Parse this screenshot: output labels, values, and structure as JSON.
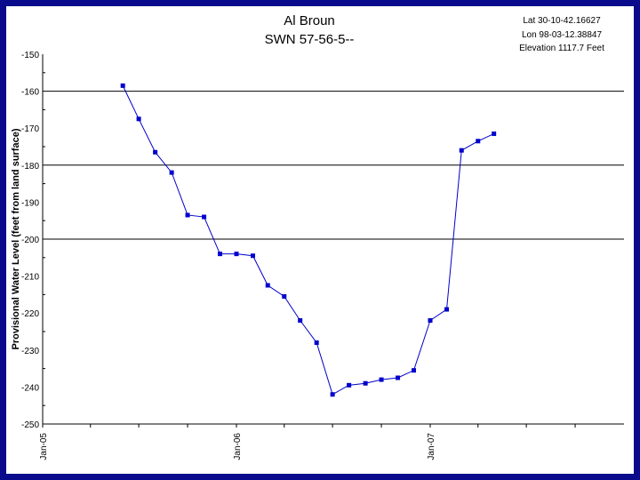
{
  "chart_data": {
    "type": "line",
    "title": "Al Broun",
    "subtitle": "SWN 57-56-5--",
    "annotations": [
      "Lat 30-10-42.16627",
      "Lon 98-03-12.38847",
      "Elevation 1117.7 Feet"
    ],
    "ylabel": "Provisional Water Level (feet from land surface)",
    "xlabel": "",
    "ylim": [
      -250,
      -150
    ],
    "yticks": [
      "-150",
      "-160",
      "-170",
      "-180",
      "-190",
      "-200",
      "-210",
      "-220",
      "-230",
      "-240",
      "-250"
    ],
    "yticks_values": [
      -150,
      -160,
      -170,
      -180,
      -190,
      -200,
      -210,
      -220,
      -230,
      -240,
      -250
    ],
    "xlim": [
      "2005-01-01",
      "2008-01-01"
    ],
    "xticks": [
      "Jan-05",
      "Jan-06",
      "Jan-07"
    ],
    "xticks_dates": [
      "2005-01-01",
      "2006-01-01",
      "2007-01-01"
    ],
    "gridlines_y": [
      -160,
      -180,
      -200
    ],
    "legend": "none",
    "marker_color": "#0000cc",
    "line_color": "#0000cc",
    "series": [
      {
        "x": [
          "2005-06-01",
          "2005-07-01",
          "2005-08-01",
          "2005-09-01",
          "2005-10-01",
          "2005-11-01",
          "2005-12-01",
          "2006-01-01",
          "2006-02-01",
          "2006-03-01",
          "2006-04-01",
          "2006-05-01",
          "2006-06-01",
          "2006-07-01",
          "2006-08-01",
          "2006-09-01",
          "2006-10-01",
          "2006-11-01",
          "2006-12-01",
          "2007-01-01",
          "2007-02-01",
          "2007-03-01",
          "2007-04-01",
          "2007-05-01",
          "2007-06-01",
          "2007-07-01"
        ],
        "values": [
          -158.5,
          -167.5,
          -176.5,
          -182,
          -193.5,
          -194,
          -204,
          -204,
          -204.5,
          -212.5,
          -215.5,
          -222,
          -228,
          -242,
          -239.5,
          -239,
          -238,
          -237.5,
          -235.5,
          -222,
          -219,
          -176,
          -173.5,
          -171.5,
          null,
          null
        ]
      }
    ]
  }
}
